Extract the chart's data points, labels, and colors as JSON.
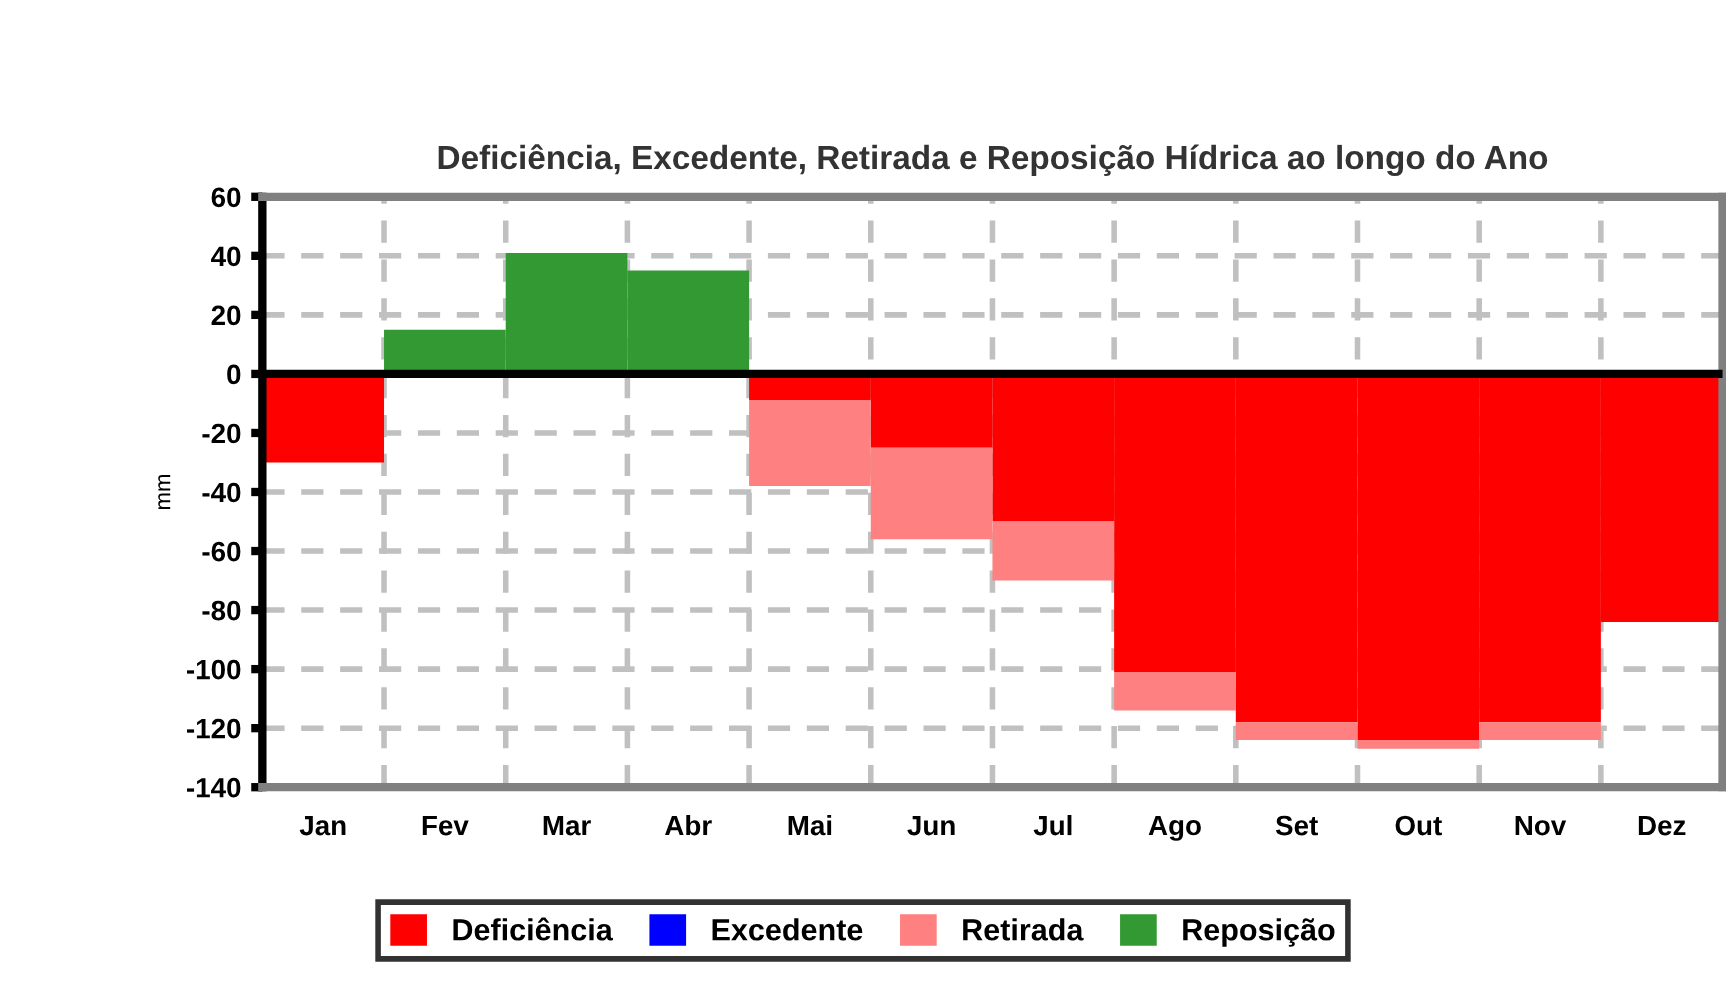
{
  "chart_data": {
    "type": "bar",
    "title": "Deficiência, Excedente, Retirada e Reposição Hídrica ao longo do Ano",
    "ylabel": "mm",
    "categories": [
      "Jan",
      "Fev",
      "Mar",
      "Abr",
      "Mai",
      "Jun",
      "Jul",
      "Ago",
      "Set",
      "Out",
      "Nov",
      "Dez"
    ],
    "stacked": true,
    "series": [
      {
        "name": "Deficiência",
        "color": "#ff0000",
        "values": [
          -30,
          0,
          0,
          0,
          -9,
          -25,
          -50,
          -101,
          -118,
          -124,
          -118,
          -84
        ]
      },
      {
        "name": "Excedente",
        "color": "#0000ff",
        "values": [
          0,
          0,
          0,
          0,
          0,
          0,
          0,
          0,
          0,
          0,
          0,
          0
        ]
      },
      {
        "name": "Retirada",
        "color": "#ff8080",
        "values": [
          0,
          0,
          0,
          0,
          -29,
          -31,
          -20,
          -13,
          -6,
          -3,
          -6,
          0
        ]
      },
      {
        "name": "Reposição",
        "color": "#339933",
        "values": [
          0,
          15,
          41,
          35,
          0,
          0,
          0,
          0,
          0,
          0,
          0,
          0
        ]
      }
    ],
    "ylim": [
      -140,
      60
    ],
    "yticks": [
      -140,
      -120,
      -100,
      -80,
      -60,
      -40,
      -20,
      0,
      20,
      40,
      60
    ],
    "grid": true,
    "legend": "bottom"
  }
}
